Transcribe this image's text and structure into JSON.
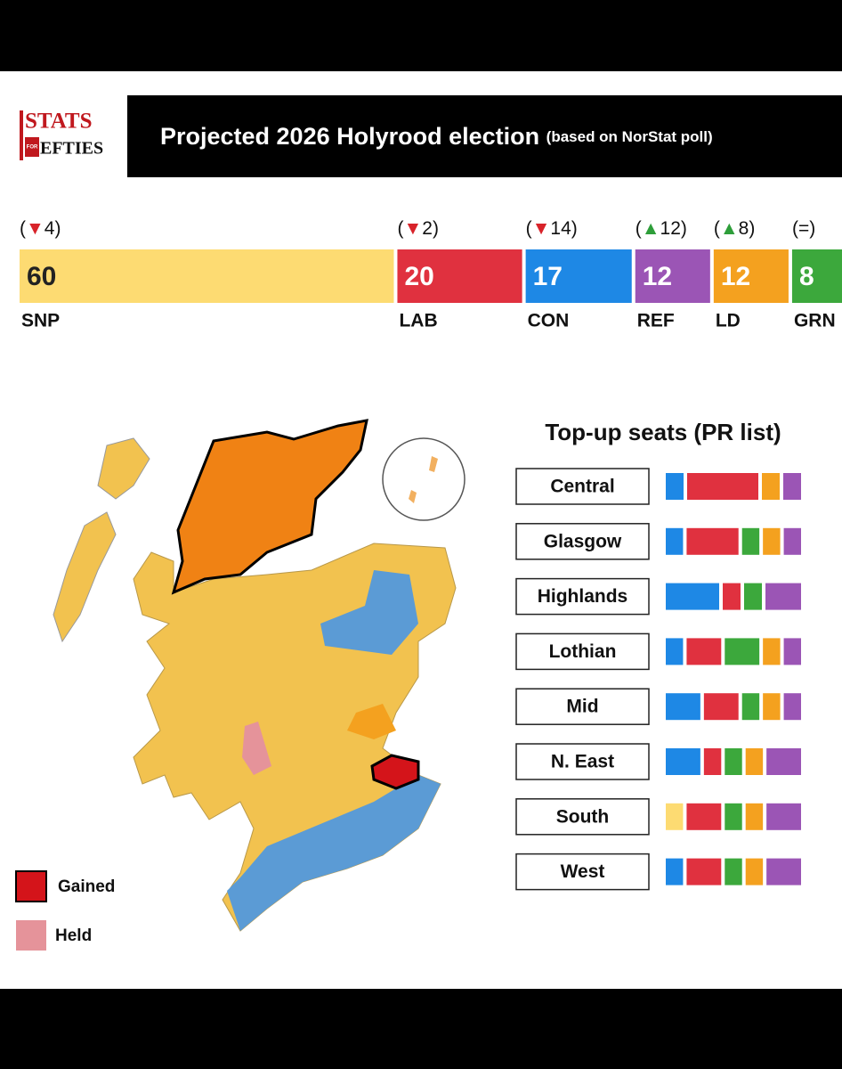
{
  "header": {
    "logo": {
      "top": "STATS",
      "small": "FOR",
      "bottom": "EFTIES"
    },
    "title": "Projected 2026 Holyrood election",
    "subtitle": "(based on NorStat poll)"
  },
  "seats": {
    "parties": [
      {
        "name": "SNP",
        "seats": 60,
        "change": "(▼4)",
        "color": "#fddb72"
      },
      {
        "name": "LAB",
        "seats": 20,
        "change": "(▼2)",
        "color": "#e0313f"
      },
      {
        "name": "CON",
        "seats": 17,
        "change": "(▼14)",
        "color": "#1e88e5"
      },
      {
        "name": "REF",
        "seats": 12,
        "change": "(▲12)",
        "color": "#9b55b5"
      },
      {
        "name": "LD",
        "seats": 12,
        "change": "(▲8)",
        "color": "#f4a11f"
      },
      {
        "name": "GRN",
        "seats": 8,
        "change": "(=)",
        "color": "#3ca83c"
      }
    ]
  },
  "legend": {
    "gained": "Gained",
    "held": "Held"
  },
  "topup": {
    "title": "Top-up seats (PR list)",
    "regions": [
      {
        "name": "Central",
        "segments": [
          {
            "color": "#1e88e5",
            "seats": 1
          },
          {
            "color": "#e0313f",
            "seats": 4
          },
          {
            "color": "#f4a11f",
            "seats": 1
          },
          {
            "color": "#9b55b5",
            "seats": 1
          }
        ]
      },
      {
        "name": "Glasgow",
        "segments": [
          {
            "color": "#1e88e5",
            "seats": 1
          },
          {
            "color": "#e0313f",
            "seats": 3
          },
          {
            "color": "#3ca83c",
            "seats": 1
          },
          {
            "color": "#f4a11f",
            "seats": 1
          },
          {
            "color": "#9b55b5",
            "seats": 1
          }
        ]
      },
      {
        "name": "Highlands",
        "segments": [
          {
            "color": "#1e88e5",
            "seats": 3
          },
          {
            "color": "#e0313f",
            "seats": 1
          },
          {
            "color": "#3ca83c",
            "seats": 1
          },
          {
            "color": "#9b55b5",
            "seats": 2
          }
        ]
      },
      {
        "name": "Lothian",
        "segments": [
          {
            "color": "#1e88e5",
            "seats": 1
          },
          {
            "color": "#e0313f",
            "seats": 2
          },
          {
            "color": "#3ca83c",
            "seats": 2
          },
          {
            "color": "#f4a11f",
            "seats": 1
          },
          {
            "color": "#9b55b5",
            "seats": 1
          }
        ]
      },
      {
        "name": "Mid",
        "segments": [
          {
            "color": "#1e88e5",
            "seats": 2
          },
          {
            "color": "#e0313f",
            "seats": 2
          },
          {
            "color": "#3ca83c",
            "seats": 1
          },
          {
            "color": "#f4a11f",
            "seats": 1
          },
          {
            "color": "#9b55b5",
            "seats": 1
          }
        ]
      },
      {
        "name": "N. East",
        "segments": [
          {
            "color": "#1e88e5",
            "seats": 2
          },
          {
            "color": "#e0313f",
            "seats": 1
          },
          {
            "color": "#3ca83c",
            "seats": 1
          },
          {
            "color": "#f4a11f",
            "seats": 1
          },
          {
            "color": "#9b55b5",
            "seats": 2
          }
        ]
      },
      {
        "name": "South",
        "segments": [
          {
            "color": "#fddb72",
            "seats": 1
          },
          {
            "color": "#e0313f",
            "seats": 2
          },
          {
            "color": "#3ca83c",
            "seats": 1
          },
          {
            "color": "#f4a11f",
            "seats": 1
          },
          {
            "color": "#9b55b5",
            "seats": 2
          }
        ]
      },
      {
        "name": "West",
        "segments": [
          {
            "color": "#1e88e5",
            "seats": 1
          },
          {
            "color": "#e0313f",
            "seats": 2
          },
          {
            "color": "#3ca83c",
            "seats": 1
          },
          {
            "color": "#f4a11f",
            "seats": 1
          },
          {
            "color": "#9b55b5",
            "seats": 2
          }
        ]
      }
    ]
  }
}
